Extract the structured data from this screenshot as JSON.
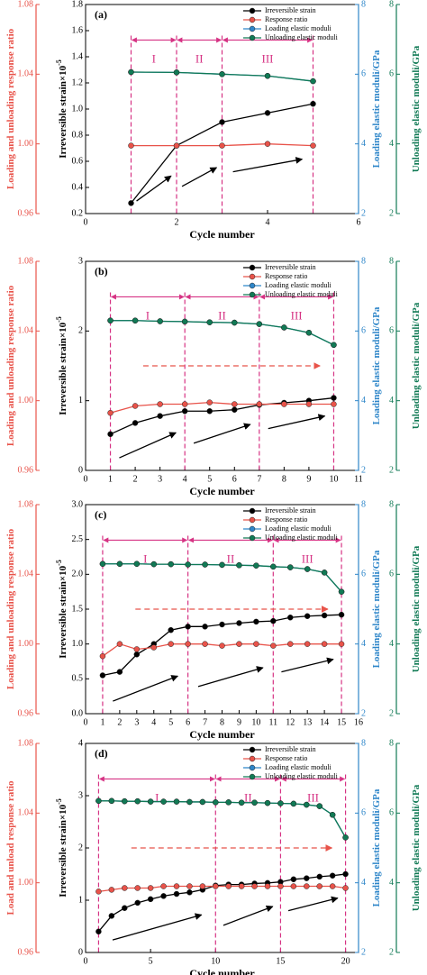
{
  "chart_data": [
    {
      "type": "line",
      "panel_label": "(a)",
      "xlabel": "Cycle number",
      "ylabel": "Irreversible strain×10",
      "ylabel_exponent": "-5",
      "y2label": "Loading elastic moduli/GPa",
      "y3label": "Unloading elastic moduli/GPa",
      "y4label": "Loading and unloading response ratio",
      "x": [
        1,
        2,
        3,
        4,
        5
      ],
      "series": [
        {
          "name": "Irreversible strain",
          "color": "#000000",
          "axis": "y",
          "values": [
            0.28,
            0.72,
            0.9,
            0.97,
            1.04
          ]
        },
        {
          "name": "Response ratio",
          "color": "#e8534a",
          "axis": "y4",
          "values": [
            0.999,
            0.999,
            0.999,
            1.0,
            0.999
          ]
        },
        {
          "name": "Loading elastic moduli",
          "color": "#2e86c9",
          "axis": "y2",
          "values": [
            6.06,
            6.05,
            6.0,
            5.95,
            5.8
          ]
        },
        {
          "name": "Unloading elastic moduli",
          "color": "#117a55",
          "axis": "y3",
          "values": [
            6.06,
            6.05,
            6.0,
            5.95,
            5.8
          ]
        }
      ],
      "xlim": [
        0,
        6
      ],
      "xticks": [
        0,
        2,
        4,
        6
      ],
      "ylim": [
        0.2,
        1.8
      ],
      "yticks": [
        0.2,
        0.4,
        0.6,
        0.8,
        {
          "value": 1,
          "label": "1.0"
        },
        1.2,
        1.4,
        1.6,
        1.8
      ],
      "y2lim": [
        2,
        8
      ],
      "y2ticks": [
        2,
        4,
        6,
        8
      ],
      "y3lim": [
        2,
        8
      ],
      "y3ticks": [
        2,
        4,
        6,
        8
      ],
      "y4lim": [
        0.96,
        1.08
      ],
      "y4ticks": [
        0.96,
        {
          "value": 1,
          "label": "1.00"
        },
        1.04,
        1.08
      ],
      "stage_boundaries": [
        1,
        2,
        3,
        5
      ],
      "stage_labels": [
        "I",
        "II",
        "III"
      ],
      "trend_arrow": false,
      "legend": "upper right"
    },
    {
      "type": "line",
      "panel_label": "(b)",
      "xlabel": "Cycle number",
      "ylabel": "Irreversible strain×10",
      "ylabel_exponent": "-5",
      "y2label": "Loading elastic moduli/GPa",
      "y3label": "Unloading elastic moduli/GPa",
      "y4label": "Loading and unloading response ratio",
      "x": [
        1,
        2,
        3,
        4,
        5,
        6,
        7,
        8,
        9,
        10
      ],
      "series": [
        {
          "name": "Irreversible strain",
          "color": "#000000",
          "axis": "y",
          "values": [
            0.52,
            0.68,
            0.78,
            0.85,
            0.85,
            0.87,
            0.94,
            0.97,
            1.0,
            1.04
          ]
        },
        {
          "name": "Response ratio",
          "color": "#e8534a",
          "axis": "y4",
          "values": [
            0.993,
            0.997,
            0.998,
            0.998,
            0.999,
            0.998,
            0.998,
            0.998,
            0.998,
            0.998
          ]
        },
        {
          "name": "Loading elastic moduli",
          "color": "#2e86c9",
          "axis": "y2",
          "values": [
            6.3,
            6.3,
            6.28,
            6.27,
            6.25,
            6.24,
            6.2,
            6.1,
            5.95,
            5.6
          ]
        },
        {
          "name": "Unloading elastic moduli",
          "color": "#117a55",
          "axis": "y3",
          "values": [
            6.3,
            6.3,
            6.28,
            6.27,
            6.25,
            6.24,
            6.2,
            6.1,
            5.95,
            5.6
          ]
        }
      ],
      "xlim": [
        0,
        11
      ],
      "xticks": [
        0,
        1,
        2,
        3,
        4,
        5,
        6,
        7,
        8,
        9,
        10,
        11
      ],
      "ylim": [
        0,
        3
      ],
      "yticks": [
        0,
        1,
        2,
        3
      ],
      "y2lim": [
        2,
        8
      ],
      "y2ticks": [
        2,
        4,
        6,
        8
      ],
      "y3lim": [
        2,
        8
      ],
      "y3ticks": [
        2,
        4,
        6,
        8
      ],
      "y4lim": [
        0.96,
        1.08
      ],
      "y4ticks": [
        0.96,
        {
          "value": 1,
          "label": "1.00"
        },
        1.04,
        1.08
      ],
      "stage_boundaries": [
        1,
        4,
        7,
        10
      ],
      "stage_labels": [
        "I",
        "II",
        "III"
      ],
      "trend_arrow": true,
      "legend": "upper right"
    },
    {
      "type": "line",
      "panel_label": "(c)",
      "xlabel": "Cycle number",
      "ylabel": "Irreversible strain×10",
      "ylabel_exponent": "-5",
      "y2label": "Loading elastic moduli/GPa",
      "y3label": "Unloading elastic moduli/GPa",
      "y4label": "Loading and unloading response ratio",
      "x": [
        1,
        2,
        3,
        4,
        5,
        6,
        7,
        8,
        9,
        10,
        11,
        12,
        13,
        14,
        15
      ],
      "series": [
        {
          "name": "Irreversible strain",
          "color": "#000000",
          "axis": "y",
          "values": [
            0.55,
            0.6,
            0.85,
            1.0,
            1.2,
            1.25,
            1.25,
            1.28,
            1.3,
            1.32,
            1.33,
            1.38,
            1.4,
            1.41,
            1.42
          ]
        },
        {
          "name": "Response ratio",
          "color": "#e8534a",
          "axis": "y4",
          "values": [
            0.993,
            1.0,
            0.997,
            0.998,
            1.0,
            1.0,
            1.0,
            0.999,
            1.0,
            1.0,
            0.999,
            1.0,
            1.0,
            1.0,
            1.0
          ]
        },
        {
          "name": "Loading elastic moduli",
          "color": "#2e86c9",
          "axis": "y2",
          "values": [
            6.3,
            6.3,
            6.3,
            6.29,
            6.29,
            6.28,
            6.28,
            6.27,
            6.26,
            6.25,
            6.22,
            6.2,
            6.15,
            6.05,
            5.5
          ]
        },
        {
          "name": "Unloading elastic moduli",
          "color": "#117a55",
          "axis": "y3",
          "values": [
            6.3,
            6.3,
            6.3,
            6.29,
            6.29,
            6.28,
            6.28,
            6.27,
            6.26,
            6.25,
            6.22,
            6.2,
            6.15,
            6.05,
            5.5
          ]
        }
      ],
      "xlim": [
        0,
        16
      ],
      "xticks": [
        0,
        1,
        2,
        3,
        4,
        5,
        6,
        7,
        8,
        9,
        10,
        11,
        12,
        13,
        14,
        15,
        16
      ],
      "ylim": [
        0,
        3
      ],
      "yticks": [
        {
          "value": 0,
          "label": "0.0"
        },
        0.5,
        {
          "value": 1,
          "label": "1.0"
        },
        1.5,
        {
          "value": 2,
          "label": "2.0"
        },
        2.5,
        {
          "value": 3,
          "label": "3.0"
        }
      ],
      "y2lim": [
        2,
        8
      ],
      "y2ticks": [
        2,
        4,
        6,
        8
      ],
      "y3lim": [
        2,
        8
      ],
      "y3ticks": [
        2,
        4,
        6,
        8
      ],
      "y4lim": [
        0.96,
        1.08
      ],
      "y4ticks": [
        0.96,
        {
          "value": 1,
          "label": "1.00"
        },
        1.04,
        1.08
      ],
      "stage_boundaries": [
        1,
        6,
        11,
        15
      ],
      "stage_labels": [
        "I",
        "II",
        "III"
      ],
      "trend_arrow": true,
      "legend": "upper right"
    },
    {
      "type": "line",
      "panel_label": "(d)",
      "xlabel": "Cycle number",
      "ylabel": "Irreversible strain×10",
      "ylabel_exponent": "-5",
      "y2label": "Loading elastic moduli/GPa",
      "y3label": "Unloading elastic moduli/GPa",
      "y4label": "Load and unload response ratio",
      "x": [
        1,
        2,
        3,
        4,
        5,
        6,
        7,
        8,
        9,
        10,
        11,
        12,
        13,
        14,
        15,
        16,
        17,
        18,
        19,
        20
      ],
      "series": [
        {
          "name": "Irreversible strain",
          "color": "#000000",
          "axis": "y",
          "values": [
            0.4,
            0.7,
            0.85,
            0.95,
            1.02,
            1.08,
            1.12,
            1.15,
            1.2,
            1.28,
            1.3,
            1.3,
            1.32,
            1.33,
            1.35,
            1.4,
            1.42,
            1.45,
            1.47,
            1.5
          ]
        },
        {
          "name": "Response ratio",
          "color": "#e8534a",
          "axis": "y4",
          "values": [
            0.995,
            0.996,
            0.997,
            0.997,
            0.997,
            0.998,
            0.998,
            0.998,
            0.998,
            0.998,
            0.998,
            0.998,
            0.998,
            0.998,
            0.998,
            0.998,
            0.998,
            0.998,
            0.998,
            0.997
          ]
        },
        {
          "name": "Loading elastic moduli",
          "color": "#2e86c9",
          "axis": "y2",
          "values": [
            6.35,
            6.35,
            6.34,
            6.34,
            6.33,
            6.33,
            6.33,
            6.32,
            6.32,
            6.31,
            6.31,
            6.3,
            6.3,
            6.29,
            6.28,
            6.27,
            6.24,
            6.2,
            5.95,
            5.3
          ]
        },
        {
          "name": "Unloading elastic moduli",
          "color": "#117a55",
          "axis": "y3",
          "values": [
            6.35,
            6.35,
            6.34,
            6.34,
            6.33,
            6.33,
            6.33,
            6.32,
            6.32,
            6.31,
            6.31,
            6.3,
            6.3,
            6.29,
            6.28,
            6.27,
            6.24,
            6.2,
            5.95,
            5.3
          ]
        }
      ],
      "xlim": [
        0,
        21
      ],
      "xticks": [
        0,
        5,
        10,
        15,
        20
      ],
      "ylim": [
        0,
        4
      ],
      "yticks": [
        0,
        1,
        2,
        3,
        4
      ],
      "y2lim": [
        2,
        8
      ],
      "y2ticks": [
        2,
        4,
        6,
        8
      ],
      "y3lim": [
        2,
        8
      ],
      "y3ticks": [
        2,
        4,
        6,
        8
      ],
      "y4lim": [
        0.96,
        1.08
      ],
      "y4ticks": [
        0.96,
        {
          "value": 1,
          "label": "1.00"
        },
        1.04,
        1.08
      ],
      "stage_boundaries": [
        1,
        10,
        15,
        20
      ],
      "stage_labels": [
        "I",
        "II",
        "III"
      ],
      "trend_arrow": true,
      "legend": "upper right"
    }
  ]
}
